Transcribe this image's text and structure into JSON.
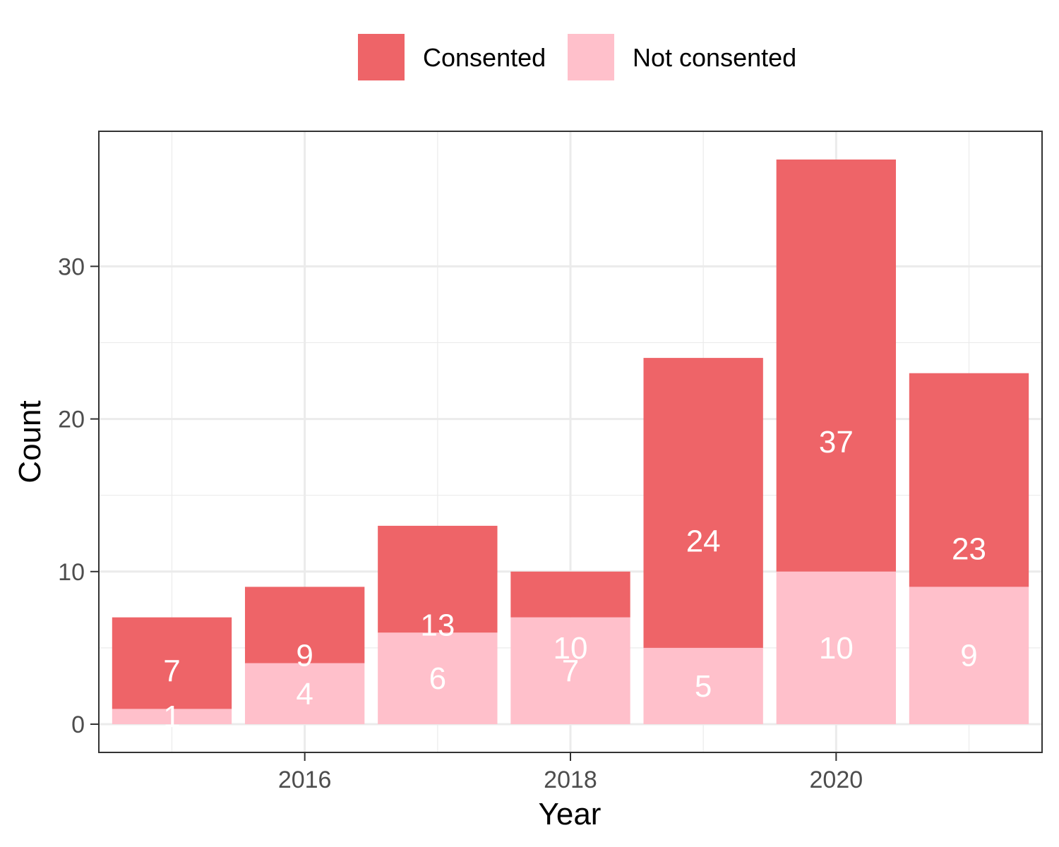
{
  "chart_data": {
    "type": "bar",
    "stacked": true,
    "title": "",
    "xlabel": "Year",
    "ylabel": "Count",
    "categories": [
      2015,
      2016,
      2017,
      2018,
      2019,
      2020,
      2021
    ],
    "series": [
      {
        "name": "Not consented",
        "color": "#FFC0CB",
        "values": [
          1,
          4,
          6,
          7,
          5,
          10,
          9
        ]
      },
      {
        "name": "Consented",
        "color": "#EE6468",
        "values": [
          6,
          5,
          7,
          3,
          19,
          27,
          14
        ]
      }
    ],
    "bar_labels": {
      "not_consented": [
        "1",
        "4",
        "6",
        "7",
        "5",
        "10",
        "9"
      ],
      "total": [
        "7",
        "9",
        "13",
        "10",
        "24",
        "37",
        "23"
      ]
    },
    "x_ticks": [
      2016,
      2018,
      2020
    ],
    "x_tick_labels": [
      "2016",
      "2018",
      "2020"
    ],
    "y_ticks": [
      0,
      10,
      20,
      30
    ],
    "y_tick_labels": [
      "0",
      "10",
      "20",
      "30"
    ],
    "xlim": [
      2014.45,
      2021.55
    ],
    "ylim": [
      -1.85,
      38.85
    ],
    "grid": true,
    "legend": {
      "position": "top",
      "entries": [
        {
          "label": "Consented",
          "color": "#EE6468"
        },
        {
          "label": "Not consented",
          "color": "#FFC0CB"
        }
      ]
    }
  }
}
